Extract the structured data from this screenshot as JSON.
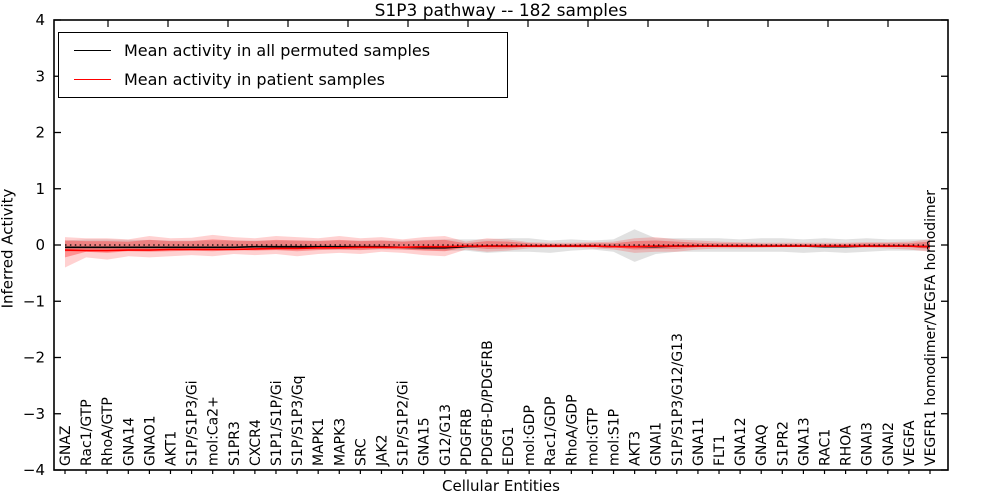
{
  "title": "S1P3 pathway -- 182 samples",
  "legend": {
    "items": [
      {
        "label": "Mean activity in all permuted samples",
        "color": "#000000"
      },
      {
        "label": "Mean activity in patient samples",
        "color": "#ff0000"
      }
    ]
  },
  "chart_data": {
    "type": "line",
    "title": "S1P3 pathway -- 182 samples",
    "xlabel": "Cellular Entities",
    "ylabel": "Inferred Activity",
    "ylim": [
      -4,
      4
    ],
    "grid": false,
    "legend_position": "upper left",
    "yticks": [
      {
        "value": 4,
        "label": "4"
      },
      {
        "value": 3,
        "label": "3"
      },
      {
        "value": 2,
        "label": "2"
      },
      {
        "value": 1,
        "label": "1"
      },
      {
        "value": 0,
        "label": "0"
      },
      {
        "value": -1,
        "label": "−1"
      },
      {
        "value": -2,
        "label": "−2"
      },
      {
        "value": -3,
        "label": "−3"
      },
      {
        "value": -4,
        "label": "−4"
      }
    ],
    "categories": [
      "GNAZ",
      "Rac1/GTP",
      "RhoA/GTP",
      "GNA14",
      "GNAO1",
      "AKT1",
      "S1P/S1P3/Gi",
      "mol:Ca2+",
      "S1PR3",
      "CXCR4",
      "S1P1/S1P/Gi",
      "S1P/S1P3/Gq",
      "MAPK1",
      "MAPK3",
      "SRC",
      "JAK2",
      "S1P/S1P2/Gi",
      "GNA15",
      "G12/G13",
      "PDGFRB",
      "PDGFB-D/PDGFRB",
      "EDG1",
      "mol:GDP",
      "Rac1/GDP",
      "RhoA/GDP",
      "mol:GTP",
      "mol:S1P",
      "AKT3",
      "GNAI1",
      "S1P/S1P3/G12/G13",
      "GNA11",
      "FLT1",
      "GNA12",
      "GNAQ",
      "S1PR2",
      "GNA13",
      "RAC1",
      "RHOA",
      "GNAI3",
      "GNAI2",
      "VEGFA",
      "VEGFR1 homodimer/VEGFA homodimer"
    ],
    "series": [
      {
        "name": "Mean activity in all permuted samples",
        "color": "#000000",
        "values": [
          -0.04,
          -0.04,
          -0.04,
          -0.04,
          -0.04,
          -0.04,
          -0.04,
          -0.04,
          -0.04,
          -0.03,
          -0.03,
          -0.03,
          -0.03,
          -0.03,
          -0.03,
          -0.03,
          -0.04,
          -0.05,
          -0.05,
          -0.03,
          -0.02,
          -0.02,
          -0.02,
          -0.02,
          -0.02,
          -0.02,
          -0.03,
          -0.03,
          -0.03,
          -0.02,
          -0.02,
          -0.02,
          -0.02,
          -0.02,
          -0.02,
          -0.02,
          -0.03,
          -0.03,
          -0.02,
          -0.02,
          -0.02,
          -0.03
        ]
      },
      {
        "name": "Mean activity in patient samples",
        "color": "#ff0000",
        "values": [
          -0.09,
          -0.1,
          -0.1,
          -0.09,
          -0.09,
          -0.08,
          -0.08,
          -0.08,
          -0.08,
          -0.07,
          -0.06,
          -0.06,
          -0.05,
          -0.05,
          -0.04,
          -0.04,
          -0.04,
          -0.03,
          -0.03,
          -0.02,
          -0.02,
          -0.02,
          -0.02,
          -0.02,
          -0.02,
          -0.02,
          -0.03,
          -0.03,
          -0.02,
          -0.02,
          -0.02,
          -0.02,
          -0.02,
          -0.02,
          -0.02,
          -0.02,
          -0.02,
          -0.02,
          -0.02,
          -0.02,
          -0.02,
          -0.03
        ]
      }
    ],
    "bands": [
      {
        "name": "permuted-spread",
        "color": "#888888",
        "alpha": 0.25,
        "upper": [
          0.08,
          0.1,
          0.1,
          0.09,
          0.09,
          0.08,
          0.08,
          0.08,
          0.08,
          0.08,
          0.08,
          0.08,
          0.08,
          0.08,
          0.08,
          0.08,
          0.08,
          0.09,
          0.1,
          0.1,
          0.1,
          0.12,
          0.12,
          0.08,
          0.1,
          0.08,
          0.1,
          0.28,
          0.12,
          0.12,
          0.12,
          0.12,
          0.1,
          0.12,
          0.12,
          0.1,
          0.12,
          0.1,
          0.12,
          0.1,
          0.1,
          0.1
        ],
        "lower": [
          -0.12,
          -0.1,
          -0.1,
          -0.09,
          -0.09,
          -0.08,
          -0.08,
          -0.08,
          -0.08,
          -0.08,
          -0.08,
          -0.08,
          -0.08,
          -0.08,
          -0.08,
          -0.08,
          -0.08,
          -0.09,
          -0.1,
          -0.1,
          -0.14,
          -0.12,
          -0.12,
          -0.14,
          -0.1,
          -0.08,
          -0.12,
          -0.3,
          -0.16,
          -0.12,
          -0.12,
          -0.12,
          -0.12,
          -0.12,
          -0.12,
          -0.14,
          -0.12,
          -0.14,
          -0.12,
          -0.1,
          -0.1,
          -0.1
        ]
      },
      {
        "name": "patient-spread-outer",
        "color": "#ff0000",
        "alpha": 0.18,
        "upper": [
          0.14,
          0.12,
          0.12,
          0.1,
          0.16,
          0.12,
          0.13,
          0.18,
          0.14,
          0.12,
          0.16,
          0.14,
          0.12,
          0.16,
          0.12,
          0.14,
          0.1,
          0.14,
          0.16,
          0.06,
          0.12,
          0.1,
          0.05,
          0.04,
          0.04,
          0.05,
          0.06,
          0.12,
          0.14,
          0.1,
          0.08,
          0.06,
          0.05,
          0.04,
          0.04,
          0.04,
          0.04,
          0.04,
          0.05,
          0.05,
          0.06,
          0.1
        ],
        "lower": [
          -0.4,
          -0.22,
          -0.26,
          -0.2,
          -0.22,
          -0.2,
          -0.18,
          -0.2,
          -0.16,
          -0.18,
          -0.16,
          -0.2,
          -0.16,
          -0.14,
          -0.16,
          -0.12,
          -0.14,
          -0.18,
          -0.2,
          -0.08,
          -0.12,
          -0.1,
          -0.06,
          -0.05,
          -0.05,
          -0.06,
          -0.08,
          -0.14,
          -0.12,
          -0.12,
          -0.08,
          -0.06,
          -0.06,
          -0.05,
          -0.04,
          -0.04,
          -0.04,
          -0.05,
          -0.05,
          -0.06,
          -0.08,
          -0.12
        ]
      },
      {
        "name": "patient-spread-inner",
        "color": "#ff0000",
        "alpha": 0.3,
        "upper": [
          0.08,
          0.07,
          0.07,
          0.06,
          0.09,
          0.07,
          0.07,
          0.1,
          0.08,
          0.07,
          0.09,
          0.08,
          0.07,
          0.09,
          0.07,
          0.08,
          0.06,
          0.08,
          0.09,
          0.03,
          0.07,
          0.06,
          0.03,
          0.02,
          0.02,
          0.03,
          0.03,
          0.07,
          0.08,
          0.06,
          0.04,
          0.03,
          0.03,
          0.02,
          0.02,
          0.02,
          0.02,
          0.02,
          0.03,
          0.03,
          0.03,
          0.06
        ],
        "lower": [
          -0.22,
          -0.12,
          -0.14,
          -0.11,
          -0.12,
          -0.11,
          -0.1,
          -0.11,
          -0.09,
          -0.1,
          -0.09,
          -0.11,
          -0.09,
          -0.08,
          -0.09,
          -0.07,
          -0.08,
          -0.1,
          -0.11,
          -0.04,
          -0.07,
          -0.06,
          -0.03,
          -0.03,
          -0.03,
          -0.03,
          -0.04,
          -0.08,
          -0.07,
          -0.07,
          -0.04,
          -0.03,
          -0.03,
          -0.03,
          -0.02,
          -0.02,
          -0.02,
          -0.03,
          -0.03,
          -0.03,
          -0.04,
          -0.07
        ]
      }
    ],
    "zero_line": {
      "y": 0,
      "style": "dotted",
      "color": "#000000"
    }
  }
}
